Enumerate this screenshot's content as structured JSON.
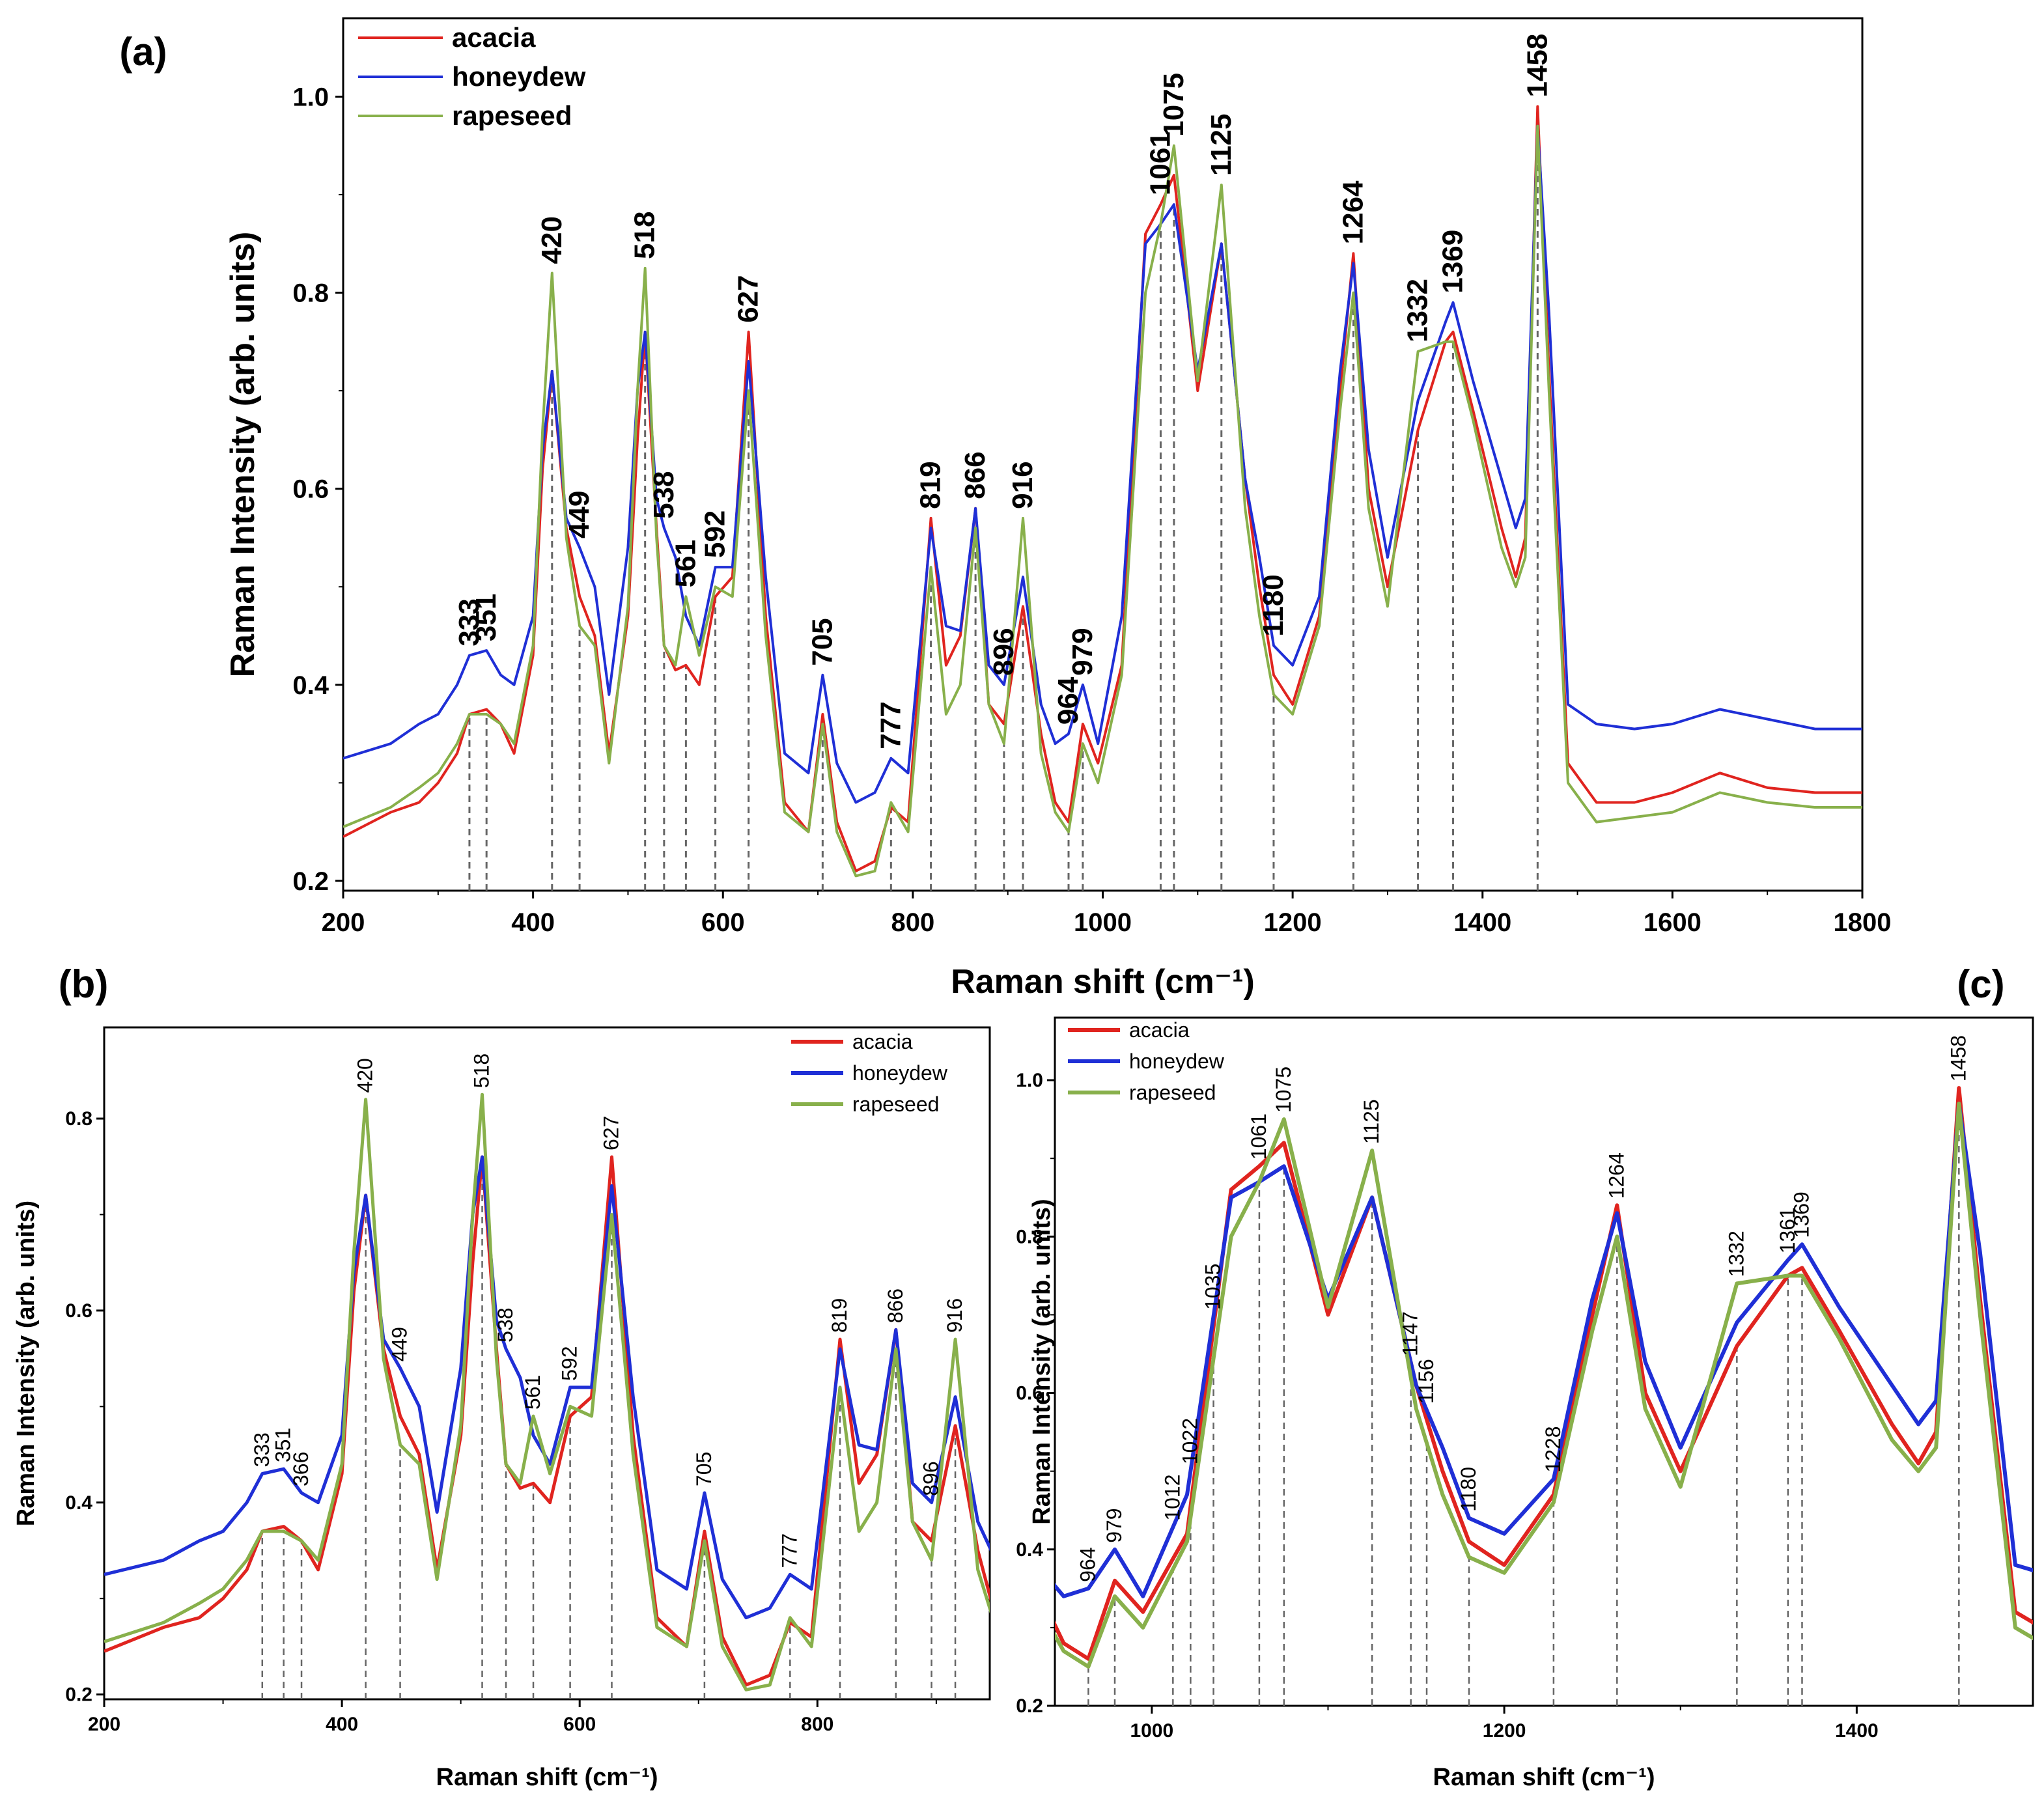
{
  "chart_data": [
    {
      "id": "a",
      "type": "line",
      "panel_label": "(a)",
      "xlabel": "Raman shift (cm⁻¹)",
      "ylabel": "Raman Intensity (arb. units)",
      "xlim": [
        200,
        1800
      ],
      "ylim": [
        0.19,
        1.08
      ],
      "xticks": [
        200,
        400,
        600,
        800,
        1000,
        1200,
        1400,
        1600,
        1800
      ],
      "yticks": [
        0.2,
        0.4,
        0.6,
        0.8,
        1.0
      ],
      "ytick_labels": [
        "0.2",
        "0.4",
        "0.6",
        "0.8",
        "1.0"
      ],
      "legend": {
        "position": "top-left",
        "entries": [
          "acacia",
          "honeydew",
          "rapeseed"
        ]
      },
      "peaks": [
        "333",
        "351",
        "420",
        "449",
        "518",
        "538",
        "561",
        "592",
        "627",
        "705",
        "777",
        "819",
        "866",
        "896",
        "916",
        "964",
        "979",
        "1061",
        "1075",
        "1125",
        "1180",
        "1264",
        "1332",
        "1369",
        "1458"
      ],
      "peak_positions": [
        333,
        351,
        420,
        449,
        518,
        538,
        561,
        592,
        627,
        705,
        777,
        819,
        866,
        896,
        916,
        964,
        979,
        1061,
        1075,
        1125,
        1180,
        1264,
        1332,
        1369,
        1458
      ]
    },
    {
      "id": "b",
      "type": "line",
      "panel_label": "(b)",
      "xlabel": "Raman shift (cm⁻¹)",
      "ylabel": "Raman Intensity (arb. units)",
      "xlim": [
        200,
        945
      ],
      "ylim": [
        0.195,
        0.895
      ],
      "xticks": [
        200,
        400,
        600,
        800
      ],
      "yticks": [
        0.2,
        0.4,
        0.6,
        0.8
      ],
      "ytick_labels": [
        "0.2",
        "0.4",
        "0.6",
        "0.8"
      ],
      "legend": {
        "position": "top-right",
        "entries": [
          "acacia",
          "honeydew",
          "rapeseed"
        ]
      },
      "peaks": [
        "333",
        "351",
        "366",
        "420",
        "449",
        "518",
        "538",
        "561",
        "592",
        "627",
        "705",
        "777",
        "819",
        "866",
        "896",
        "916"
      ],
      "peak_positions": [
        333,
        351,
        366,
        420,
        449,
        518,
        538,
        561,
        592,
        627,
        705,
        777,
        819,
        866,
        896,
        916
      ]
    },
    {
      "id": "c",
      "type": "line",
      "panel_label": "(c)",
      "xlabel": "Raman shift (cm⁻¹)",
      "ylabel": "Raman Intensity (arb. units)",
      "xlim": [
        945,
        1500
      ],
      "ylim": [
        0.2,
        1.08
      ],
      "xticks": [
        1000,
        1200,
        1400
      ],
      "yticks": [
        0.2,
        0.4,
        0.6,
        0.8,
        1.0
      ],
      "ytick_labels": [
        "0.2",
        "0.4",
        "0.6",
        "0.8",
        "1.0"
      ],
      "legend": {
        "position": "top-left",
        "entries": [
          "acacia",
          "honeydew",
          "rapeseed"
        ]
      },
      "peaks": [
        "964",
        "979",
        "1012",
        "1022",
        "1035",
        "1061",
        "1075",
        "1125",
        "1147",
        "1156",
        "1180",
        "1228",
        "1264",
        "1332",
        "1361",
        "1369",
        "1458"
      ],
      "peak_positions": [
        964,
        979,
        1012,
        1022,
        1035,
        1061,
        1075,
        1125,
        1147,
        1156,
        1180,
        1228,
        1264,
        1332,
        1361,
        1369,
        1458
      ]
    }
  ],
  "series": [
    {
      "name": "acacia",
      "color": "#e0241f",
      "x": [
        200,
        250,
        280,
        300,
        320,
        333,
        351,
        366,
        380,
        400,
        410,
        420,
        435,
        449,
        465,
        480,
        500,
        510,
        518,
        530,
        538,
        550,
        561,
        575,
        592,
        610,
        627,
        645,
        665,
        690,
        705,
        720,
        740,
        760,
        777,
        795,
        819,
        835,
        850,
        866,
        880,
        896,
        916,
        935,
        950,
        964,
        979,
        995,
        1020,
        1045,
        1061,
        1075,
        1100,
        1125,
        1150,
        1165,
        1180,
        1200,
        1228,
        1250,
        1264,
        1280,
        1300,
        1332,
        1361,
        1369,
        1390,
        1420,
        1435,
        1445,
        1458,
        1470,
        1490,
        1520,
        1560,
        1600,
        1650,
        1700,
        1750,
        1800
      ],
      "y": [
        0.245,
        0.27,
        0.28,
        0.3,
        0.33,
        0.37,
        0.375,
        0.36,
        0.33,
        0.43,
        0.62,
        0.72,
        0.56,
        0.49,
        0.45,
        0.33,
        0.47,
        0.65,
        0.76,
        0.56,
        0.44,
        0.415,
        0.42,
        0.4,
        0.49,
        0.51,
        0.76,
        0.47,
        0.28,
        0.25,
        0.37,
        0.26,
        0.21,
        0.22,
        0.275,
        0.26,
        0.57,
        0.42,
        0.45,
        0.58,
        0.38,
        0.36,
        0.48,
        0.35,
        0.28,
        0.26,
        0.36,
        0.32,
        0.42,
        0.86,
        0.89,
        0.92,
        0.7,
        0.85,
        0.61,
        0.5,
        0.41,
        0.38,
        0.47,
        0.7,
        0.84,
        0.6,
        0.5,
        0.66,
        0.75,
        0.76,
        0.68,
        0.56,
        0.51,
        0.55,
        0.99,
        0.72,
        0.32,
        0.28,
        0.28,
        0.29,
        0.31,
        0.295,
        0.29,
        0.29
      ]
    },
    {
      "name": "honeydew",
      "color": "#1f2fd6",
      "x": [
        200,
        250,
        280,
        300,
        320,
        333,
        351,
        366,
        380,
        400,
        410,
        420,
        435,
        449,
        465,
        480,
        500,
        510,
        518,
        530,
        538,
        550,
        561,
        575,
        592,
        610,
        627,
        645,
        665,
        690,
        705,
        720,
        740,
        760,
        777,
        795,
        819,
        835,
        850,
        866,
        880,
        896,
        916,
        935,
        950,
        964,
        979,
        995,
        1020,
        1045,
        1061,
        1075,
        1100,
        1125,
        1150,
        1165,
        1180,
        1200,
        1228,
        1250,
        1264,
        1280,
        1300,
        1332,
        1361,
        1369,
        1390,
        1420,
        1435,
        1445,
        1458,
        1470,
        1490,
        1520,
        1560,
        1600,
        1650,
        1700,
        1750,
        1800
      ],
      "y": [
        0.325,
        0.34,
        0.36,
        0.37,
        0.4,
        0.43,
        0.435,
        0.41,
        0.4,
        0.47,
        0.64,
        0.72,
        0.57,
        0.54,
        0.5,
        0.39,
        0.54,
        0.7,
        0.76,
        0.59,
        0.56,
        0.53,
        0.47,
        0.44,
        0.52,
        0.52,
        0.73,
        0.51,
        0.33,
        0.31,
        0.41,
        0.32,
        0.28,
        0.29,
        0.325,
        0.31,
        0.56,
        0.46,
        0.455,
        0.58,
        0.42,
        0.4,
        0.51,
        0.38,
        0.34,
        0.35,
        0.4,
        0.34,
        0.47,
        0.85,
        0.87,
        0.89,
        0.72,
        0.85,
        0.61,
        0.53,
        0.44,
        0.42,
        0.49,
        0.72,
        0.83,
        0.64,
        0.53,
        0.69,
        0.77,
        0.79,
        0.71,
        0.61,
        0.56,
        0.59,
        0.97,
        0.78,
        0.38,
        0.36,
        0.355,
        0.36,
        0.375,
        0.365,
        0.355,
        0.355
      ]
    },
    {
      "name": "rapeseed",
      "color": "#88b04b",
      "x": [
        200,
        250,
        280,
        300,
        320,
        333,
        351,
        366,
        380,
        400,
        410,
        420,
        435,
        449,
        465,
        480,
        500,
        510,
        518,
        530,
        538,
        550,
        561,
        575,
        592,
        610,
        627,
        645,
        665,
        690,
        705,
        720,
        740,
        760,
        777,
        795,
        819,
        835,
        850,
        866,
        880,
        896,
        916,
        935,
        950,
        964,
        979,
        995,
        1020,
        1045,
        1061,
        1075,
        1100,
        1125,
        1150,
        1165,
        1180,
        1200,
        1228,
        1250,
        1264,
        1280,
        1300,
        1332,
        1361,
        1369,
        1390,
        1420,
        1435,
        1445,
        1458,
        1470,
        1490,
        1520,
        1560,
        1600,
        1650,
        1700,
        1750,
        1800
      ],
      "y": [
        0.255,
        0.275,
        0.295,
        0.31,
        0.34,
        0.37,
        0.37,
        0.36,
        0.34,
        0.44,
        0.66,
        0.82,
        0.55,
        0.46,
        0.44,
        0.32,
        0.48,
        0.7,
        0.825,
        0.55,
        0.44,
        0.42,
        0.49,
        0.43,
        0.5,
        0.49,
        0.7,
        0.45,
        0.27,
        0.25,
        0.36,
        0.25,
        0.205,
        0.21,
        0.28,
        0.25,
        0.52,
        0.37,
        0.4,
        0.56,
        0.38,
        0.34,
        0.57,
        0.33,
        0.27,
        0.25,
        0.34,
        0.3,
        0.41,
        0.8,
        0.87,
        0.95,
        0.71,
        0.91,
        0.58,
        0.47,
        0.39,
        0.37,
        0.46,
        0.68,
        0.8,
        0.58,
        0.48,
        0.74,
        0.75,
        0.75,
        0.67,
        0.54,
        0.5,
        0.53,
        0.97,
        0.7,
        0.3,
        0.26,
        0.265,
        0.27,
        0.29,
        0.28,
        0.275,
        0.275
      ]
    }
  ]
}
